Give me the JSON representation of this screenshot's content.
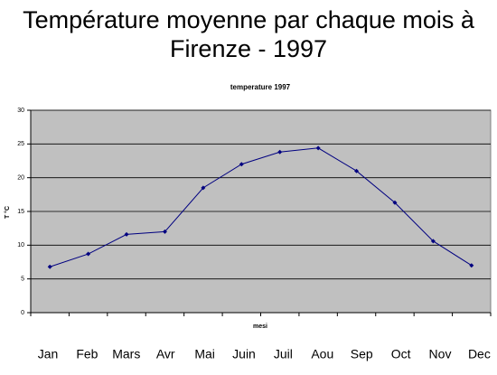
{
  "chart_data": {
    "type": "line",
    "title": "Température moyenne par chaque mois à Firenze - 1997",
    "subtitle": "temperature 1997",
    "xlabel": "mesi",
    "ylabel": "T °C",
    "categories": [
      "Jan",
      "Feb",
      "Mars",
      "Avr",
      "Mai",
      "Juin",
      "Juil",
      "Aou",
      "Sep",
      "Oct",
      "Nov",
      "Dec"
    ],
    "series": [
      {
        "name": "temperature 1997",
        "color": "#000080",
        "values": [
          6.8,
          8.7,
          11.6,
          12.0,
          18.5,
          22.0,
          23.8,
          24.4,
          21.0,
          16.3,
          10.6,
          7.0
        ]
      }
    ],
    "ylim": [
      0,
      30
    ],
    "yticks": [
      0,
      5,
      10,
      15,
      20,
      25,
      30
    ],
    "grid": true,
    "plot_background": "#c0c0c0"
  }
}
